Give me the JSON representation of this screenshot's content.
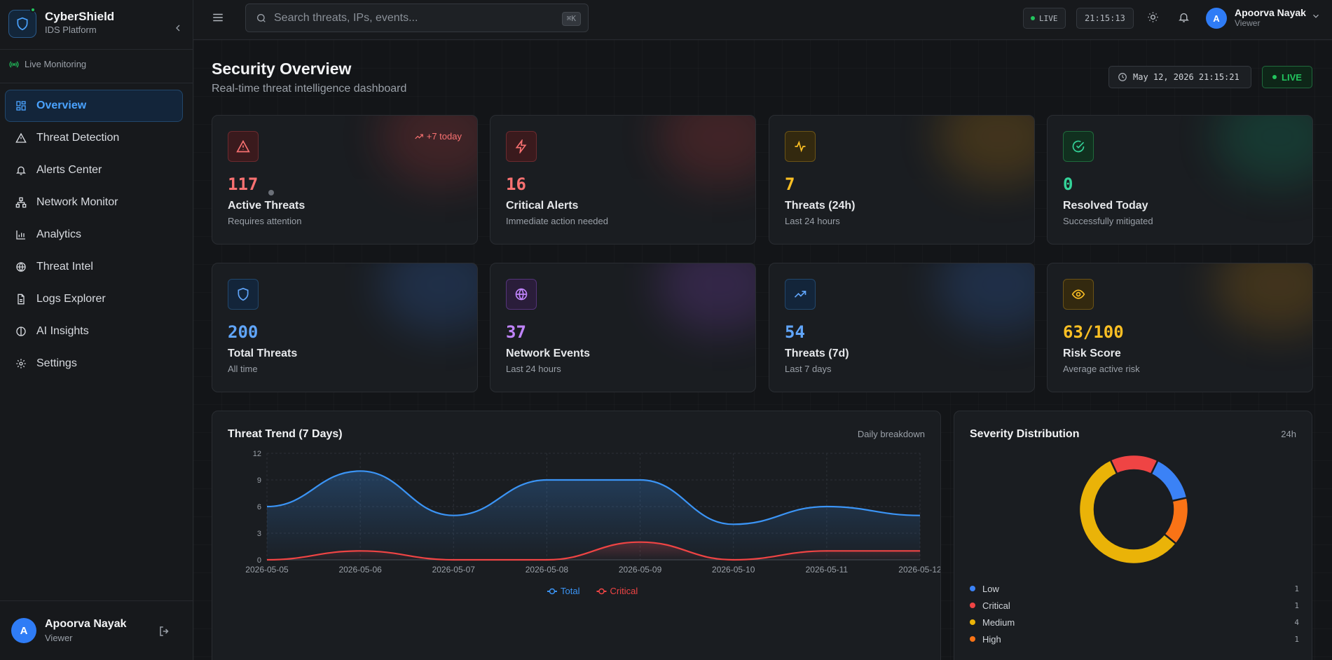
{
  "brand": {
    "name": "CyberShield",
    "subtitle": "IDS Platform"
  },
  "sidebar": {
    "live_label": "Live Monitoring",
    "items": [
      {
        "label": "Overview",
        "icon": "grid-icon",
        "active": true
      },
      {
        "label": "Threat Detection",
        "icon": "warning-icon"
      },
      {
        "label": "Alerts Center",
        "icon": "bell-icon"
      },
      {
        "label": "Network Monitor",
        "icon": "network-icon"
      },
      {
        "label": "Analytics",
        "icon": "bar-chart-icon"
      },
      {
        "label": "Threat Intel",
        "icon": "globe-icon"
      },
      {
        "label": "Logs Explorer",
        "icon": "file-icon"
      },
      {
        "label": "AI Insights",
        "icon": "brain-icon"
      },
      {
        "label": "Settings",
        "icon": "gear-icon"
      }
    ],
    "user": {
      "initial": "A",
      "name": "Apoorva Nayak",
      "role": "Viewer"
    }
  },
  "topbar": {
    "search_placeholder": "Search threats, IPs, events...",
    "search_shortcut": "⌘K",
    "live_label": "LIVE",
    "clock": "21:15:13",
    "user": {
      "initial": "A",
      "name": "Apoorva Nayak",
      "role": "Viewer"
    }
  },
  "header": {
    "title": "Security Overview",
    "subtitle": "Real-time threat intelligence dashboard",
    "datetime": "May 12, 2026 21:15:21",
    "live_label": "LIVE"
  },
  "stats": [
    {
      "value": "117",
      "label": "Active Threats",
      "sub": "Requires attention",
      "icon": "warning-icon",
      "color": "#f87171",
      "trend": "+7 today"
    },
    {
      "value": "16",
      "label": "Critical Alerts",
      "sub": "Immediate action needed",
      "icon": "bolt-icon",
      "color": "#f87171"
    },
    {
      "value": "7",
      "label": "Threats (24h)",
      "sub": "Last 24 hours",
      "icon": "activity-icon",
      "color": "#fbbf24"
    },
    {
      "value": "0",
      "label": "Resolved Today",
      "sub": "Successfully mitigated",
      "icon": "check-circle-icon",
      "color": "#34d399"
    },
    {
      "value": "200",
      "label": "Total Threats",
      "sub": "All time",
      "icon": "shield-icon",
      "color": "#60a5fa"
    },
    {
      "value": "37",
      "label": "Network Events",
      "sub": "Last 24 hours",
      "icon": "globe-icon",
      "color": "#c084fc"
    },
    {
      "value": "54",
      "label": "Threats (7d)",
      "sub": "Last 7 days",
      "icon": "trending-up-icon",
      "color": "#60a5fa"
    },
    {
      "value": "63/100",
      "label": "Risk Score",
      "sub": "Average active risk",
      "icon": "eye-icon",
      "color": "#fbbf24"
    }
  ],
  "trend_panel": {
    "title": "Threat Trend (7 Days)",
    "tag": "Daily breakdown"
  },
  "severity_panel": {
    "title": "Severity Distribution",
    "tag": "24h"
  },
  "chart_data": [
    {
      "type": "area",
      "title": "Threat Trend (7 Days)",
      "categories": [
        "2026-05-05",
        "2026-05-06",
        "2026-05-07",
        "2026-05-08",
        "2026-05-09",
        "2026-05-10",
        "2026-05-11",
        "2026-05-12"
      ],
      "series": [
        {
          "name": "Total",
          "values": [
            6,
            10,
            5,
            9,
            9,
            4,
            6,
            5
          ],
          "color": "#3b94f5"
        },
        {
          "name": "Critical",
          "values": [
            0,
            1,
            0,
            0,
            2,
            0,
            1,
            1
          ],
          "color": "#ef4444"
        }
      ],
      "ylim": [
        0,
        12
      ],
      "yticks": [
        0,
        3,
        6,
        9,
        12
      ],
      "grid": true,
      "legend": "bottom"
    },
    {
      "type": "pie",
      "title": "Severity Distribution",
      "slices": [
        {
          "name": "Low",
          "value": 1,
          "color": "#3b82f6"
        },
        {
          "name": "Critical",
          "value": 1,
          "color": "#ef4444"
        },
        {
          "name": "Medium",
          "value": 4,
          "color": "#eab308"
        },
        {
          "name": "High",
          "value": 1,
          "color": "#f97316"
        }
      ],
      "order_clockwise_from_top": [
        "Critical",
        "Low",
        "High",
        "Medium"
      ],
      "donut": true
    }
  ]
}
